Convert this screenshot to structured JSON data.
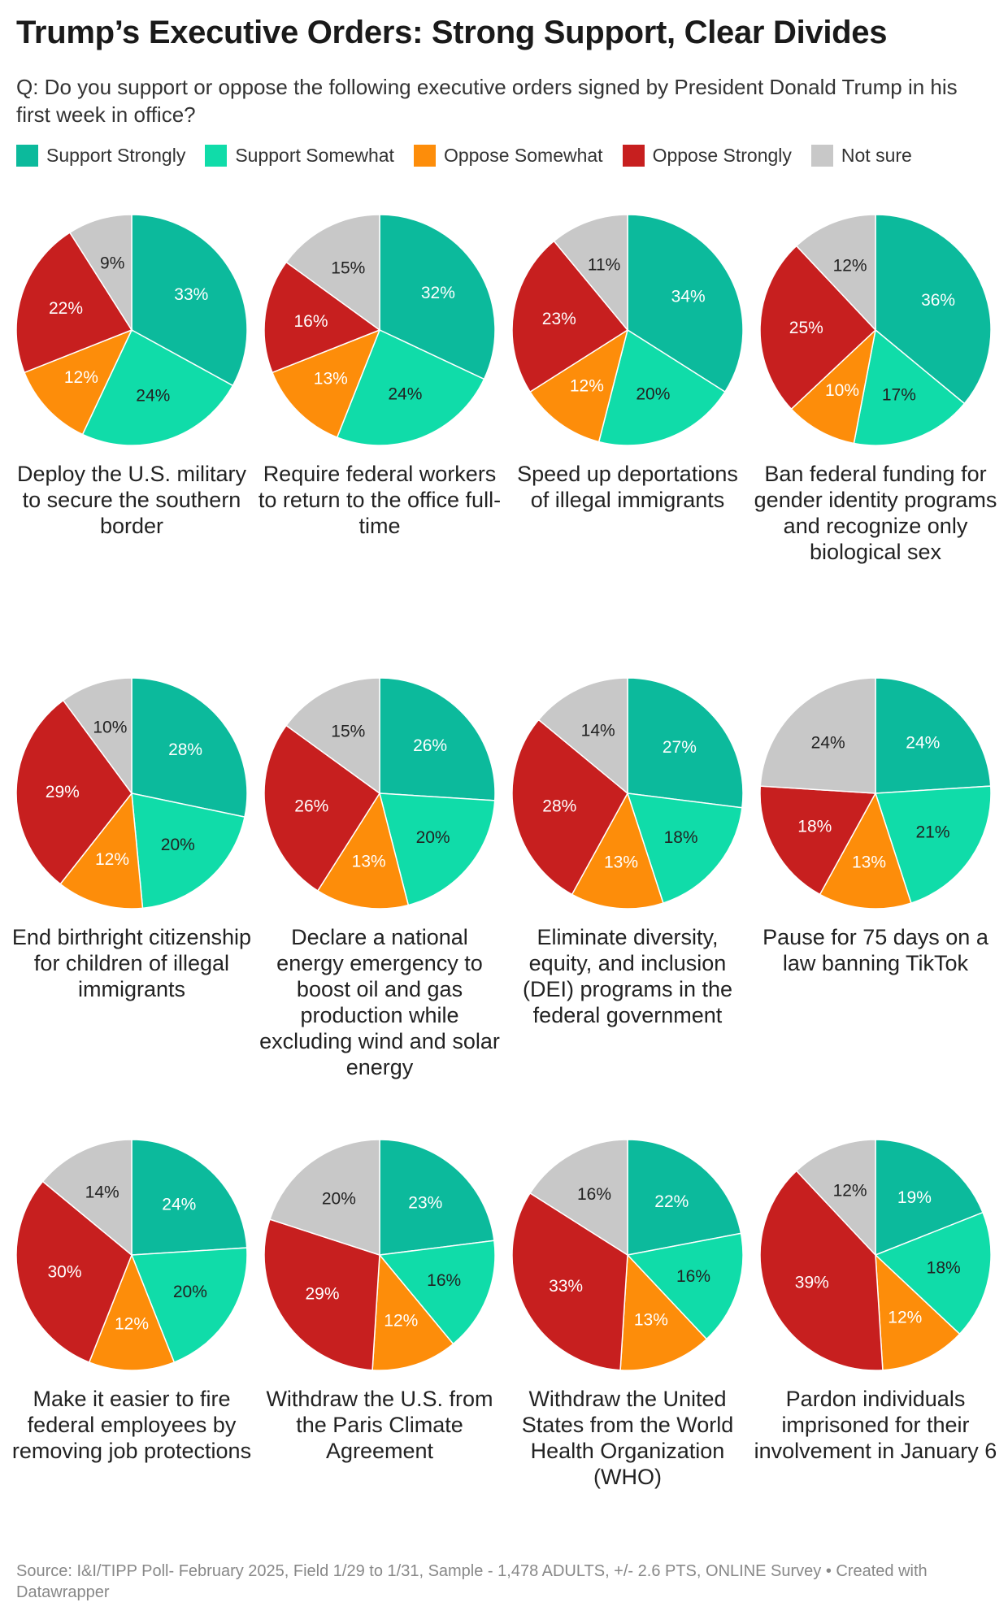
{
  "title": "Trump’s Executive Orders: Strong Support, Clear Divides",
  "subtitle": "Q: Do you support or oppose the following executive orders signed by President Donald Trump in his first week in office?",
  "source": "Source: I&I/TIPP Poll- February 2025, Field 1/29 to 1/31, Sample - 1,478 ADULTS, +/- 2.6 PTS, ONLINE Survey • Created with Datawrapper",
  "chart_data": {
    "type": "pie",
    "categories": [
      "Support Strongly",
      "Support Somewhat",
      "Oppose Somewhat",
      "Oppose Strongly",
      "Not sure"
    ],
    "colors": [
      "#0cba9c",
      "#10dca9",
      "#fd8d0a",
      "#c71f1f",
      "#c8c8c8"
    ],
    "label_colors": [
      "#ffffff",
      "#222222",
      "#ffffff",
      "#ffffff",
      "#222222"
    ],
    "value_suffix": "%",
    "pies": [
      {
        "label": "Deploy the U.S. military to secure the southern border",
        "values": [
          33,
          24,
          12,
          22,
          9
        ]
      },
      {
        "label": "Require federal workers to return to the office full-time",
        "values": [
          32,
          24,
          13,
          16,
          15
        ]
      },
      {
        "label": "Speed up deportations of illegal immigrants",
        "values": [
          34,
          20,
          12,
          23,
          11
        ]
      },
      {
        "label": "Ban federal funding for gender identity programs and recognize only biological sex",
        "values": [
          36,
          17,
          10,
          25,
          12
        ]
      },
      {
        "label": "End birthright citizenship for children of illegal immigrants",
        "values": [
          28,
          20,
          12,
          29,
          10
        ]
      },
      {
        "label": "Declare a national energy emergency to boost oil and gas production while excluding wind and solar energy",
        "values": [
          26,
          20,
          13,
          26,
          15
        ]
      },
      {
        "label": "Eliminate diversity, equity, and inclusion (DEI) programs in the federal government",
        "values": [
          27,
          18,
          13,
          28,
          14
        ]
      },
      {
        "label": "Pause for 75 days on a law banning TikTok",
        "values": [
          24,
          21,
          13,
          18,
          24
        ]
      },
      {
        "label": "Make it easier to fire federal employees by removing job protections",
        "values": [
          24,
          20,
          12,
          30,
          14
        ]
      },
      {
        "label": "Withdraw the U.S. from the Paris Climate Agreement",
        "values": [
          23,
          16,
          12,
          29,
          20
        ]
      },
      {
        "label": "Withdraw the United States from the World Health Organization (WHO)",
        "values": [
          22,
          16,
          13,
          33,
          16
        ]
      },
      {
        "label": "Pardon individuals imprisoned for their involvement in January 6",
        "values": [
          19,
          18,
          12,
          39,
          12
        ]
      }
    ]
  }
}
